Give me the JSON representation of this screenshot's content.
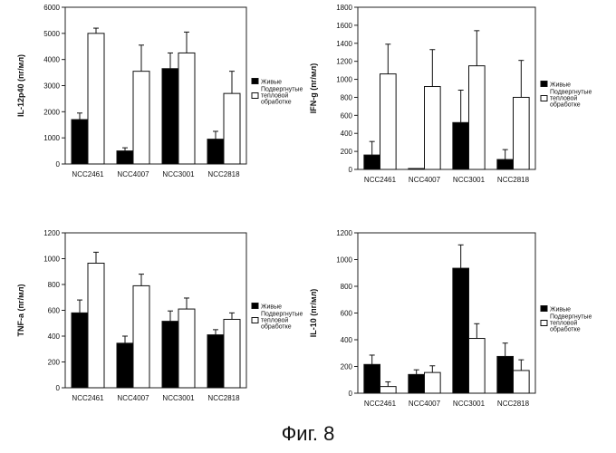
{
  "figure": {
    "caption": "Фиг. 8"
  },
  "chart_data": [
    {
      "type": "bar",
      "ylabel": "IL-12p40 (пг/мл)",
      "ylim": [
        0,
        6000
      ],
      "yticks": [
        0,
        1000,
        2000,
        3000,
        4000,
        5000,
        6000
      ],
      "categories": [
        "NCC2461",
        "NCC4007",
        "NCC3001",
        "NCC2818"
      ],
      "legend": "right",
      "series": [
        {
          "name": "Живые",
          "color": "#000000",
          "values": [
            1700,
            500,
            3650,
            950
          ],
          "errors": [
            250,
            120,
            600,
            300
          ]
        },
        {
          "name": "Подвергнутые тепловой обработке",
          "color": "#ffffff",
          "values": [
            5000,
            3550,
            4250,
            2700
          ],
          "errors": [
            200,
            1000,
            800,
            850
          ]
        }
      ]
    },
    {
      "type": "bar",
      "ylabel": "IFN-g (пг/мл)",
      "ylim": [
        0,
        1800
      ],
      "yticks": [
        0,
        200,
        400,
        600,
        800,
        1000,
        1200,
        1400,
        1600,
        1800
      ],
      "categories": [
        "NCC2461",
        "NCC4007",
        "NCC3001",
        "NCC2818"
      ],
      "legend": "right",
      "series": [
        {
          "name": "Живые",
          "color": "#000000",
          "values": [
            160,
            10,
            520,
            110
          ],
          "errors": [
            150,
            0,
            360,
            110
          ]
        },
        {
          "name": "Подвергнутые тепловой обработке",
          "color": "#ffffff",
          "values": [
            1060,
            920,
            1150,
            800
          ],
          "errors": [
            330,
            410,
            390,
            410
          ]
        }
      ]
    },
    {
      "type": "bar",
      "ylabel": "TNF-a (пг/мл)",
      "ylim": [
        0,
        1200
      ],
      "yticks": [
        0,
        200,
        400,
        600,
        800,
        1000,
        1200
      ],
      "categories": [
        "NCC2461",
        "NCC4007",
        "NCC3001",
        "NCC2818"
      ],
      "legend": "right",
      "series": [
        {
          "name": "Живые",
          "color": "#000000",
          "values": [
            580,
            345,
            515,
            410
          ],
          "errors": [
            100,
            55,
            80,
            40
          ]
        },
        {
          "name": "Подвергнутые тепловой обработке",
          "color": "#ffffff",
          "values": [
            965,
            790,
            610,
            530
          ],
          "errors": [
            85,
            90,
            85,
            50
          ]
        }
      ]
    },
    {
      "type": "bar",
      "ylabel": "IL-10 (пг/мл)",
      "ylim": [
        0,
        1200
      ],
      "yticks": [
        0,
        200,
        400,
        600,
        800,
        1000,
        1200
      ],
      "categories": [
        "NCC2461",
        "NCC4007",
        "NCC3001",
        "NCC2818"
      ],
      "legend": "right",
      "series": [
        {
          "name": "Живые",
          "color": "#000000",
          "values": [
            215,
            140,
            935,
            275
          ],
          "errors": [
            70,
            35,
            175,
            100
          ]
        },
        {
          "name": "Подвергнутые тепловой обработке",
          "color": "#ffffff",
          "values": [
            50,
            155,
            410,
            170
          ],
          "errors": [
            35,
            50,
            110,
            80
          ]
        }
      ]
    }
  ]
}
